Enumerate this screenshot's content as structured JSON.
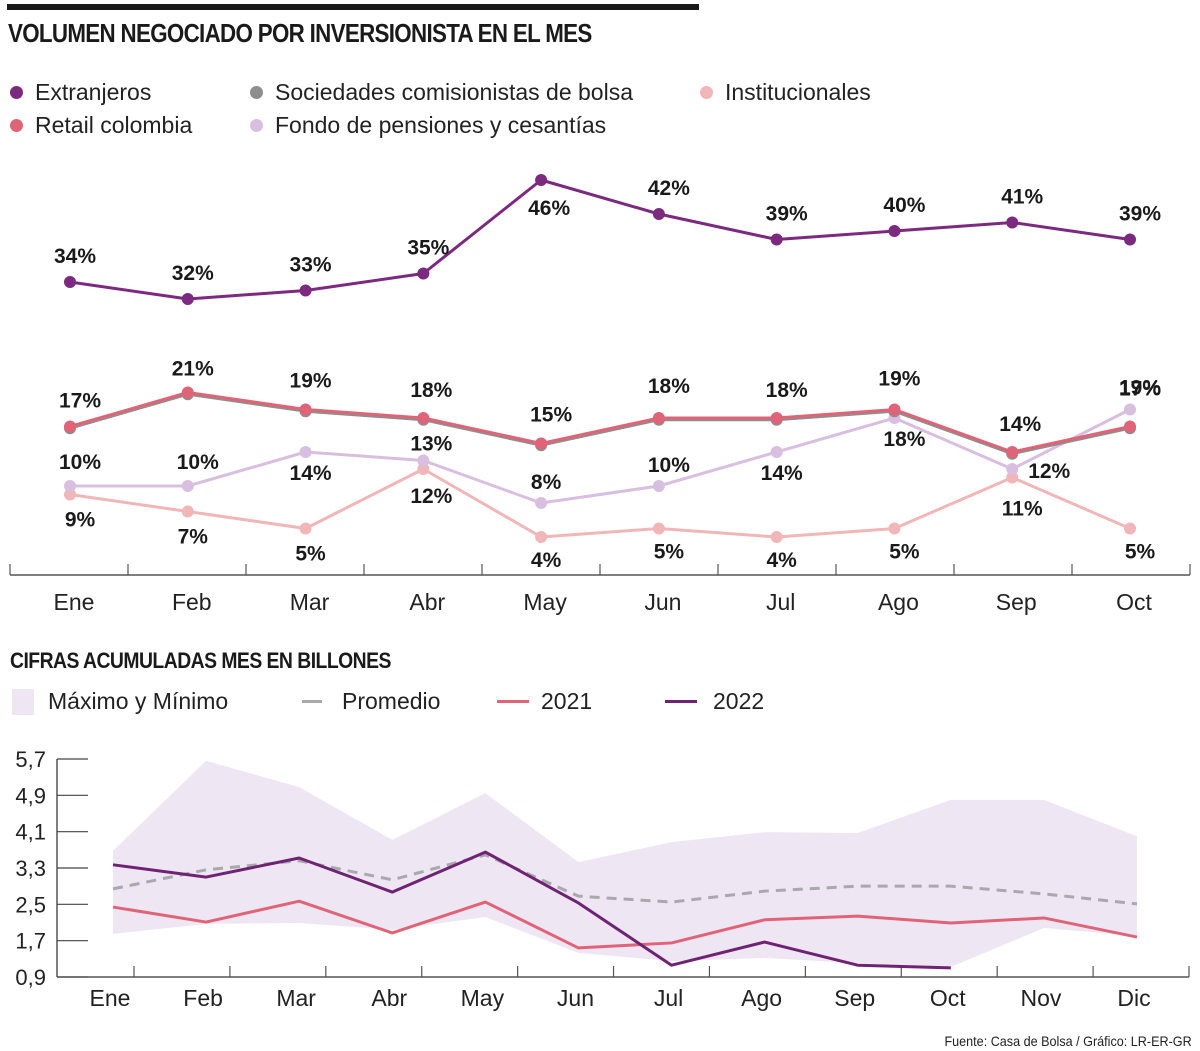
{
  "chart_data": [
    {
      "type": "line",
      "title": "VOLUMEN NEGOCIADO POR INVERSIONISTA EN EL MES",
      "xlabel": "",
      "ylabel": "",
      "unit": "%",
      "categories": [
        "Ene",
        "Feb",
        "Mar",
        "Abr",
        "May",
        "Jun",
        "Jul",
        "Ago",
        "Sep",
        "Oct"
      ],
      "grid": false,
      "legend_position": "top-left",
      "series": [
        {
          "name": "Extranjeros",
          "color": "#7b2a7f",
          "values": [
            34,
            32,
            33,
            35,
            46,
            42,
            39,
            40,
            41,
            39
          ],
          "labels": [
            "34%",
            "32%",
            "33%",
            "35%",
            "46%",
            "42%",
            "39%",
            "40%",
            "41%",
            "39%"
          ]
        },
        {
          "name": "Sociedades comisionistas de bolsa",
          "color": "#8e8e8e",
          "values": [
            16.8,
            20.8,
            18.8,
            17.8,
            14.8,
            17.8,
            17.8,
            18.8,
            13.8,
            16.8
          ],
          "labels": []
        },
        {
          "name": "Institucionales",
          "color": "#f0b6b8",
          "values": [
            9,
            7,
            5,
            12,
            4,
            5,
            4,
            5,
            11,
            5
          ],
          "labels": [
            "9%",
            "7%",
            "5%",
            "12%",
            "4%",
            "5%",
            "4%",
            "5%",
            "11%",
            "5%"
          ]
        },
        {
          "name": "Retail colombia",
          "color": "#e06478",
          "values": [
            17,
            21,
            19,
            18,
            15,
            18,
            18,
            19,
            14,
            17
          ],
          "labels": [
            "17%",
            "21%",
            "19%",
            "18%",
            "15%",
            "18%",
            "18%",
            "19%",
            "14%",
            "17%"
          ]
        },
        {
          "name": "Fondo de pensiones y cesantías",
          "color": "#d8bfe0",
          "values": [
            10,
            10,
            14,
            13,
            8,
            10,
            14,
            18,
            12,
            19
          ],
          "labels": [
            "10%",
            "10%",
            "14%",
            "13%",
            "8%",
            "10%",
            "14%",
            "18%",
            "12%",
            "19%"
          ]
        }
      ]
    },
    {
      "type": "line",
      "title": "CIFRAS ACUMULADAS MES EN BILLONES",
      "xlabel": "",
      "ylabel": "",
      "categories": [
        "Ene",
        "Feb",
        "Mar",
        "Abr",
        "May",
        "Jun",
        "Jul",
        "Ago",
        "Sep",
        "Oct",
        "Nov",
        "Dic"
      ],
      "ylim": [
        0.9,
        5.7
      ],
      "yticks": [
        "0,9",
        "1,7",
        "2,5",
        "3,3",
        "4,1",
        "4,9",
        "5,7"
      ],
      "ytick_values": [
        0.9,
        1.7,
        2.5,
        3.3,
        4.1,
        4.9,
        5.7
      ],
      "grid": false,
      "legend_position": "top-left",
      "band": {
        "name": "Máximo y Mínimo",
        "color": "#efe6f3",
        "max": [
          3.68,
          5.66,
          5.08,
          3.92,
          4.95,
          3.43,
          3.87,
          4.09,
          4.07,
          4.8,
          4.8,
          4.0
        ],
        "min": [
          1.85,
          2.07,
          2.09,
          1.94,
          2.22,
          1.43,
          1.25,
          1.32,
          1.2,
          1.12,
          1.98,
          1.8
        ]
      },
      "series": [
        {
          "name": "Promedio",
          "color": "#a9a9ad",
          "dashed": true,
          "values": [
            2.84,
            3.26,
            3.46,
            3.04,
            3.59,
            2.68,
            2.55,
            2.79,
            2.9,
            2.9,
            2.73,
            2.51
          ]
        },
        {
          "name": "2021",
          "color": "#e06478",
          "values": [
            2.44,
            2.11,
            2.57,
            1.87,
            2.55,
            1.54,
            1.65,
            2.16,
            2.24,
            2.09,
            2.2,
            1.78
          ]
        },
        {
          "name": "2022",
          "color": "#6e2373",
          "values": [
            3.37,
            3.1,
            3.52,
            2.77,
            3.65,
            2.53,
            1.16,
            1.67,
            1.16,
            1.1,
            null,
            null
          ]
        }
      ]
    }
  ],
  "header": {
    "title": "VOLUMEN NEGOCIADO POR INVERSIONISTA EN EL MES"
  },
  "legend_top": [
    {
      "label": "Extranjeros",
      "color": "#7b2a7f"
    },
    {
      "label": "Sociedades comisionistas de bolsa",
      "color": "#8e8e8e"
    },
    {
      "label": "Institucionales",
      "color": "#f0b6b8"
    },
    {
      "label": "Retail colombia",
      "color": "#e06478"
    },
    {
      "label": "Fondo de pensiones y cesantías",
      "color": "#d8bfe0"
    }
  ],
  "section2": {
    "title": "CIFRAS ACUMULADAS MES EN BILLONES"
  },
  "legend_bottom": [
    {
      "label": "Máximo y Mínimo"
    },
    {
      "label": "Promedio"
    },
    {
      "label": "2021"
    },
    {
      "label": "2022"
    }
  ],
  "footer": {
    "source": "Fuente: Casa de Bolsa / Gráfico: LR-ER-GR"
  }
}
